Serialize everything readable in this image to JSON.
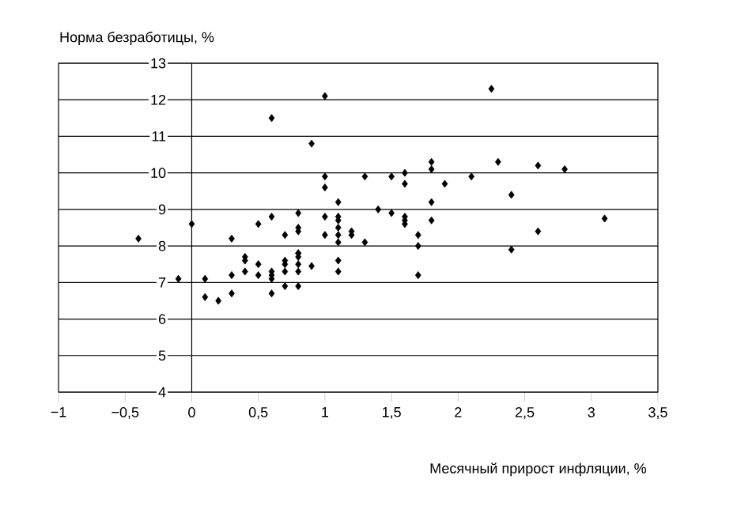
{
  "chart_data": {
    "type": "scatter",
    "xlabel": "Месячный прирост инфляции, %",
    "ylabel": "Норма безработицы, %",
    "xlim": [
      -1,
      3.5
    ],
    "ylim": [
      4,
      13
    ],
    "xticks": [
      {
        "value": -1,
        "label": "−1"
      },
      {
        "value": -0.5,
        "label": "−0,5"
      },
      0,
      {
        "value": 0.5,
        "label": "0,5"
      },
      1,
      {
        "value": 1.5,
        "label": "1,5"
      },
      2,
      {
        "value": 2.5,
        "label": "2,5"
      },
      3,
      {
        "value": 3.5,
        "label": "3,5"
      }
    ],
    "yticks": [
      4,
      5,
      6,
      7,
      8,
      9,
      10,
      11,
      12,
      13
    ],
    "grid": "y",
    "marker": "diamond",
    "color": "#000000",
    "x": [
      -0.4,
      -0.1,
      0,
      0.1,
      0.1,
      0.2,
      0.3,
      0.3,
      0.3,
      0.4,
      0.4,
      0.4,
      0.5,
      0.5,
      0.5,
      0.6,
      0.6,
      0.6,
      0.6,
      0.6,
      0.6,
      0.7,
      0.7,
      0.7,
      0.7,
      0.7,
      0.8,
      0.8,
      0.8,
      0.8,
      0.8,
      0.8,
      0.8,
      0.8,
      0.8,
      0.9,
      0.9,
      1,
      1,
      1,
      1,
      1,
      1.1,
      1.1,
      1.1,
      1.1,
      1.1,
      1.1,
      1.1,
      1.1,
      1.2,
      1.2,
      1.3,
      1.3,
      1.4,
      1.5,
      1.5,
      1.6,
      1.6,
      1.6,
      1.6,
      1.6,
      1.7,
      1.7,
      1.7,
      1.8,
      1.8,
      1.8,
      1.8,
      1.9,
      2.1,
      2.25,
      2.3,
      2.4,
      2.4,
      2.6,
      2.6,
      2.8,
      3.1
    ],
    "values": [
      8.2,
      7.1,
      8.6,
      7.1,
      6.6,
      6.5,
      8.2,
      7.2,
      6.7,
      7.7,
      7.6,
      7.3,
      8.6,
      7.5,
      7.2,
      11.5,
      8.8,
      7.3,
      7.2,
      7.1,
      6.7,
      8.3,
      7.6,
      7.5,
      7.3,
      6.9,
      8.9,
      8.5,
      8.4,
      7.8,
      7.7,
      7.5,
      7.3,
      6.9,
      7.8,
      10.8,
      7.45,
      12.1,
      9.9,
      9.6,
      8.8,
      8.3,
      9.2,
      8.8,
      8.7,
      8.5,
      8.3,
      8.1,
      7.6,
      7.3,
      8.4,
      8.3,
      9.9,
      8.1,
      9.0,
      9.9,
      8.9,
      10.0,
      9.7,
      8.8,
      8.7,
      8.6,
      8.3,
      8.0,
      7.2,
      10.3,
      10.1,
      9.2,
      8.7,
      9.7,
      9.9,
      12.3,
      10.3,
      9.4,
      7.9,
      10.2,
      8.4,
      10.1,
      8.75
    ]
  }
}
